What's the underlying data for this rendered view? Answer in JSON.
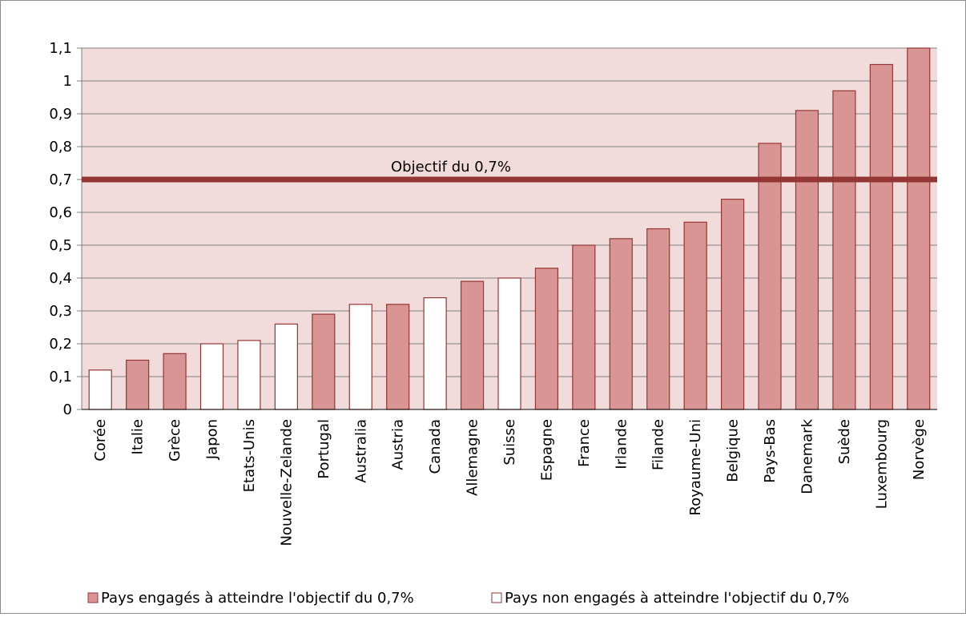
{
  "chart_data": {
    "type": "bar",
    "categories": [
      "Corée",
      "Italie",
      "Grèce",
      "Japon",
      "Etats-Unis",
      "Nouvelle-Zelande",
      "Portugal",
      "Australia",
      "Austria",
      "Canada",
      "Allemagne",
      "Suisse",
      "Espagne",
      "France",
      "Irlande",
      "Filande",
      "Royaume-Uni",
      "Belgique",
      "Pays-Bas",
      "Danemark",
      "Suède",
      "Luxembourg",
      "Norvège"
    ],
    "values": [
      0.12,
      0.15,
      0.17,
      0.2,
      0.21,
      0.26,
      0.29,
      0.32,
      0.32,
      0.34,
      0.39,
      0.4,
      0.43,
      0.5,
      0.52,
      0.55,
      0.57,
      0.64,
      0.81,
      0.91,
      0.97,
      1.05,
      1.1
    ],
    "committed": [
      false,
      true,
      true,
      false,
      false,
      false,
      true,
      false,
      true,
      false,
      true,
      false,
      true,
      true,
      true,
      true,
      true,
      true,
      true,
      true,
      true,
      true,
      true
    ],
    "ylim": [
      0,
      1.1
    ],
    "yticks": [
      "0",
      "0,1",
      "0,2",
      "0,3",
      "0,4",
      "0,5",
      "0,6",
      "0,7",
      "0,8",
      "0,9",
      "1",
      "1,1"
    ],
    "grid": true,
    "target_line": {
      "value": 0.7,
      "label": "Objectif du 0,7%"
    },
    "legend": {
      "placement": "bottom",
      "entries": [
        {
          "label": "Pays engagés à atteindre l'objectif du 0,7%",
          "style": "filled"
        },
        {
          "label": "Pays non engagés à atteindre l'objectif du 0,7%",
          "style": "empty"
        }
      ]
    },
    "colors": {
      "filled_bar": "#d99594",
      "bar_border": "#943634",
      "empty_bar": "#ffffff",
      "plot_background": "#f2dcdb",
      "target_line": "#943634",
      "grid": "#808080"
    }
  }
}
